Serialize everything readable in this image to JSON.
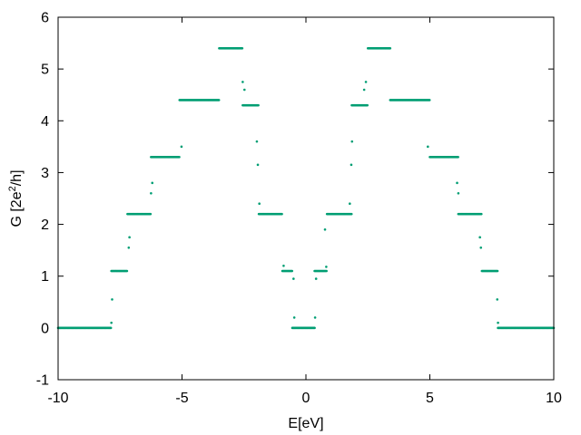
{
  "chart_data": {
    "type": "scatter",
    "xlabel": "E[eV]",
    "ylabel": "G [2e²/h]",
    "ylabel_parts": {
      "pre": "G [2e",
      "sup": "2",
      "post": "/h]"
    },
    "xlim": [
      -10,
      10
    ],
    "ylim": [
      -1,
      6
    ],
    "xticks": [
      -10,
      -5,
      0,
      5,
      10
    ],
    "yticks": [
      -1,
      0,
      1,
      2,
      3,
      4,
      5,
      6
    ],
    "grid": false,
    "legend": "none",
    "series": [
      {
        "color": "#009e73",
        "marker": "dot",
        "plateaus": [
          {
            "x": [
              -10.0,
              -7.85
            ],
            "y": 0.0
          },
          {
            "x": [
              -7.85,
              -7.2
            ],
            "y": 1.1
          },
          {
            "x": [
              -7.2,
              -6.25
            ],
            "y": 2.2
          },
          {
            "x": [
              -6.25,
              -5.1
            ],
            "y": 3.3
          },
          {
            "x": [
              -5.1,
              -3.5
            ],
            "y": 4.4
          },
          {
            "x": [
              -3.5,
              -2.55
            ],
            "y": 5.4
          },
          {
            "x": [
              -2.55,
              -1.9
            ],
            "y": 4.3
          },
          {
            "x": [
              -1.9,
              -0.95
            ],
            "y": 2.2
          },
          {
            "x": [
              -0.95,
              -0.55
            ],
            "y": 1.1
          },
          {
            "x": [
              -0.55,
              0.35
            ],
            "y": 0.0
          },
          {
            "x": [
              0.35,
              0.85
            ],
            "y": 1.1
          },
          {
            "x": [
              0.85,
              1.85
            ],
            "y": 2.2
          },
          {
            "x": [
              1.85,
              2.5
            ],
            "y": 4.3
          },
          {
            "x": [
              2.5,
              3.4
            ],
            "y": 5.4
          },
          {
            "x": [
              3.4,
              5.0
            ],
            "y": 4.4
          },
          {
            "x": [
              5.0,
              6.15
            ],
            "y": 3.3
          },
          {
            "x": [
              6.15,
              7.1
            ],
            "y": 2.2
          },
          {
            "x": [
              7.1,
              7.75
            ],
            "y": 1.1
          },
          {
            "x": [
              7.75,
              10.0
            ],
            "y": 0.0
          }
        ],
        "isolated_points": [
          {
            "x": -7.85,
            "y": 0.1
          },
          {
            "x": -7.82,
            "y": 0.55
          },
          {
            "x": -7.15,
            "y": 1.55
          },
          {
            "x": -7.12,
            "y": 1.75
          },
          {
            "x": -6.25,
            "y": 2.6
          },
          {
            "x": -6.2,
            "y": 2.8
          },
          {
            "x": -5.02,
            "y": 3.5
          },
          {
            "x": -2.55,
            "y": 4.75
          },
          {
            "x": -2.48,
            "y": 4.6
          },
          {
            "x": -1.98,
            "y": 3.6
          },
          {
            "x": -1.94,
            "y": 3.15
          },
          {
            "x": -1.88,
            "y": 2.4
          },
          {
            "x": -0.9,
            "y": 1.2
          },
          {
            "x": -0.5,
            "y": 0.95
          },
          {
            "x": -0.47,
            "y": 0.2
          },
          {
            "x": 0.37,
            "y": 0.2
          },
          {
            "x": 0.41,
            "y": 0.95
          },
          {
            "x": 0.82,
            "y": 1.18
          },
          {
            "x": 0.77,
            "y": 1.9
          },
          {
            "x": 1.77,
            "y": 2.4
          },
          {
            "x": 1.83,
            "y": 3.15
          },
          {
            "x": 1.86,
            "y": 3.6
          },
          {
            "x": 2.35,
            "y": 4.6
          },
          {
            "x": 2.42,
            "y": 4.75
          },
          {
            "x": 4.92,
            "y": 3.5
          },
          {
            "x": 6.1,
            "y": 2.8
          },
          {
            "x": 6.15,
            "y": 2.6
          },
          {
            "x": 7.02,
            "y": 1.75
          },
          {
            "x": 7.06,
            "y": 1.55
          },
          {
            "x": 7.72,
            "y": 0.55
          },
          {
            "x": 7.75,
            "y": 0.1
          }
        ]
      }
    ]
  }
}
